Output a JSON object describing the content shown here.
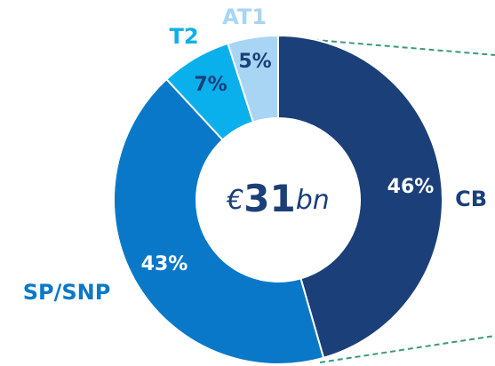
{
  "chart_data": {
    "type": "donut",
    "categories": [
      "CB",
      "SP/SNP",
      "T2",
      "AT1"
    ],
    "values": [
      46,
      43,
      7,
      5
    ],
    "value_labels": [
      "46%",
      "43%",
      "7%",
      "5%"
    ],
    "colors": [
      "#1b3f78",
      "#0a78c8",
      "#09b0ec",
      "#a8d5f4"
    ],
    "label_colors": [
      "#1b3f78",
      "#0a78c8",
      "#09b0ec",
      "#a8d5f4"
    ],
    "value_label_colors": [
      "#ffffff",
      "#ffffff",
      "#1b3f78",
      "#1b3f78"
    ],
    "center_label": {
      "currency": "€",
      "amount": "31",
      "unit": "bn"
    }
  }
}
